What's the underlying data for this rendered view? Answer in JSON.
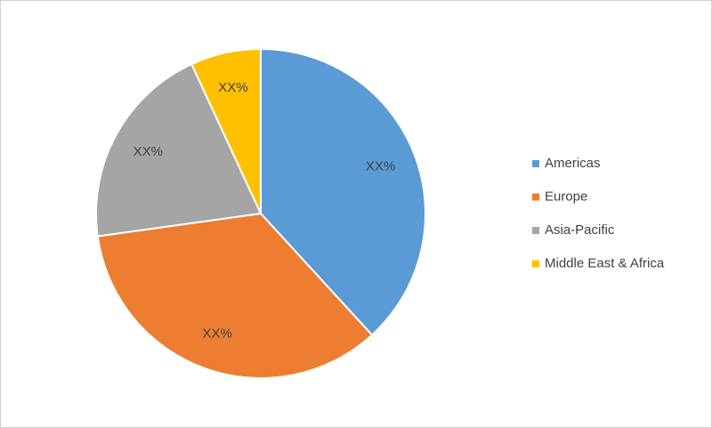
{
  "chart_data": {
    "type": "pie",
    "categories": [
      "Americas",
      "Europe",
      "Asia-Pacific",
      "Middle East & Africa"
    ],
    "values": [
      38.2,
      34.6,
      20.3,
      6.9
    ],
    "value_labels": [
      "XX%",
      "XX%",
      "XX%",
      "XX%"
    ],
    "colors": [
      "#5b9bd5",
      "#ed7d31",
      "#a5a5a5",
      "#ffc000"
    ],
    "legend": "right"
  }
}
